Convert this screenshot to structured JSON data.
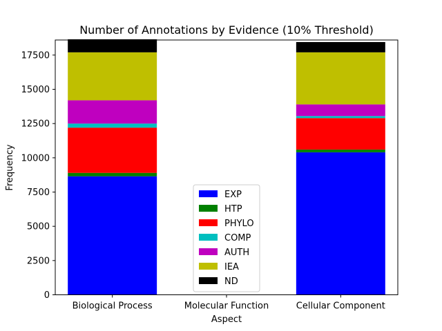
{
  "chart_data": {
    "type": "bar",
    "stacked": true,
    "title": "Number of Annotations by Evidence (10% Threshold)",
    "xlabel": "Aspect",
    "ylabel": "Frequency",
    "categories": [
      "Biological Process",
      "Molecular Function",
      "Cellular Component"
    ],
    "ylim": [
      0,
      18600
    ],
    "yticks": [
      0,
      2500,
      5000,
      7500,
      10000,
      12500,
      15000,
      17500
    ],
    "grid": false,
    "legend_position": "lower center",
    "series": [
      {
        "name": "EXP",
        "color": "#0000ff",
        "values": [
          8650,
          0,
          10400
        ]
      },
      {
        "name": "HTP",
        "color": "#008000",
        "values": [
          250,
          0,
          200
        ]
      },
      {
        "name": "PHYLO",
        "color": "#ff0000",
        "values": [
          3300,
          0,
          2300
        ]
      },
      {
        "name": "COMP",
        "color": "#00bfbf",
        "values": [
          300,
          0,
          150
        ]
      },
      {
        "name": "AUTH",
        "color": "#bf00bf",
        "values": [
          1700,
          0,
          850
        ]
      },
      {
        "name": "IEA",
        "color": "#bfbf00",
        "values": [
          3500,
          0,
          3800
        ]
      },
      {
        "name": "ND",
        "color": "#000000",
        "values": [
          950,
          0,
          750
        ]
      }
    ]
  }
}
